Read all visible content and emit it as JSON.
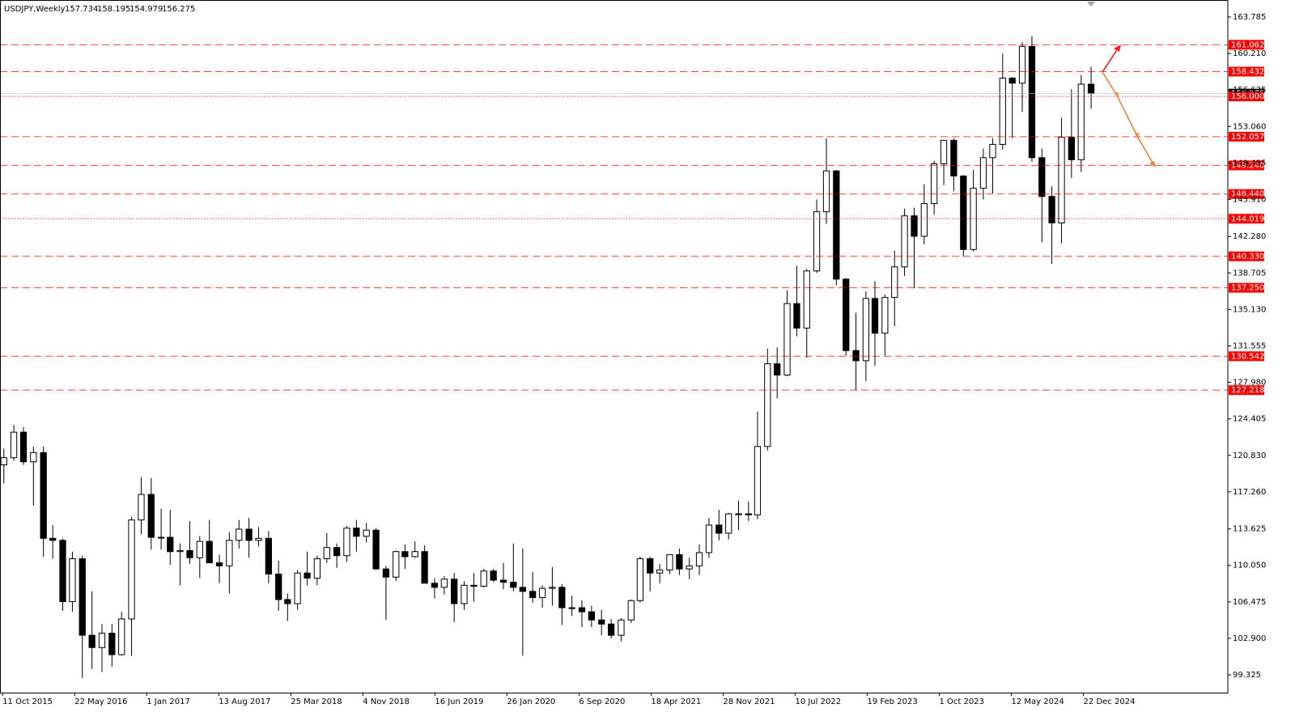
{
  "chart_data": {
    "type": "candlestick",
    "header": {
      "symbol": "USDJPY,Weekly",
      "quote": [
        157.734,
        158.195,
        154.979,
        156.275
      ]
    },
    "ylim": [
      97.58,
      165.29
    ],
    "yticks": [
      163.785,
      {
        "value": 160.21,
        "label": "160.210"
      },
      156.635,
      {
        "value": 153.06,
        "label": "153.060"
      },
      149.485,
      {
        "value": 145.91,
        "label": "145.910"
      },
      {
        "value": 142.28,
        "label": "142.280"
      },
      138.705,
      {
        "value": 135.13,
        "label": "135.130"
      },
      131.555,
      {
        "value": 127.98,
        "label": "127.980"
      },
      124.405,
      {
        "value": 120.83,
        "label": "120.830"
      },
      {
        "value": 117.26,
        "label": "117.260"
      },
      113.625,
      {
        "value": 110.05,
        "label": "110.050"
      },
      106.475,
      {
        "value": 102.9,
        "label": "102.900"
      },
      99.325
    ],
    "xlim": [
      "3 Oct 2015",
      "16 Mar 2026"
    ],
    "xticks": [
      "11 Oct 2015",
      "22 May 2016",
      "1 Jan 2017",
      "13 Aug 2017",
      "25 Mar 2018",
      "4 Nov 2018",
      "16 Jun 2019",
      "26 Jan 2020",
      "6 Sep 2020",
      "18 Apr 2021",
      "28 Nov 2021",
      "10 Jul 2022",
      "19 Feb 2023",
      "1 Oct 2023",
      "12 May 2024",
      "22 Dec 2024"
    ],
    "dashed_levels": [
      161.062,
      158.432,
      152.057,
      {
        "value": 149.24,
        "label": "149.240"
      },
      {
        "value": 146.44,
        "label": "146.440"
      },
      {
        "value": 140.33,
        "label": "140.330"
      },
      {
        "value": 137.25,
        "label": "137.250"
      },
      130.542,
      127.218
    ],
    "dotted_levels": [
      {
        "value": 156,
        "label": "156.000"
      },
      144.019
    ],
    "level_color": "#ff0000",
    "x": [
      "2015-10",
      "2015-11",
      "2015-12",
      "2016-01",
      "2016-02",
      "2016-03",
      "2016-04",
      "2016-05",
      "2016-06",
      "2016-07",
      "2016-08",
      "2016-09",
      "2016-10",
      "2016-11",
      "2016-12",
      "2017-01",
      "2017-02",
      "2017-03",
      "2017-04",
      "2017-05",
      "2017-06",
      "2017-07",
      "2017-08",
      "2017-09",
      "2017-10",
      "2017-11",
      "2017-12",
      "2018-01",
      "2018-02",
      "2018-03",
      "2018-04",
      "2018-05",
      "2018-06",
      "2018-07",
      "2018-08",
      "2018-09",
      "2018-10",
      "2018-11",
      "2018-12",
      "2019-01",
      "2019-02",
      "2019-03",
      "2019-04",
      "2019-05",
      "2019-06",
      "2019-07",
      "2019-08",
      "2019-09",
      "2019-10",
      "2019-11",
      "2019-12",
      "2020-01",
      "2020-02",
      "2020-03",
      "2020-04",
      "2020-05",
      "2020-06",
      "2020-07",
      "2020-08",
      "2020-09",
      "2020-10",
      "2020-11",
      "2020-12",
      "2021-01",
      "2021-02",
      "2021-03",
      "2021-04",
      "2021-05",
      "2021-06",
      "2021-07",
      "2021-08",
      "2021-09",
      "2021-10",
      "2021-11",
      "2021-12",
      "2022-01",
      "2022-02",
      "2022-03",
      "2022-04",
      "2022-05",
      "2022-06",
      "2022-07",
      "2022-08",
      "2022-09",
      "2022-10",
      "2022-11",
      "2022-12",
      "2023-01",
      "2023-02",
      "2023-03",
      "2023-04",
      "2023-05",
      "2023-06",
      "2023-07",
      "2023-08",
      "2023-09",
      "2023-10",
      "2023-11",
      "2023-12",
      "2024-01",
      "2024-02",
      "2024-03",
      "2024-04",
      "2024-05",
      "2024-06",
      "2024-07",
      "2024-08",
      "2024-09",
      "2024-10",
      "2024-11",
      "2024-12",
      "2025-01"
    ],
    "ohlc": [
      [
        119.9,
        121.5,
        118.1,
        120.6
      ],
      [
        120.6,
        123.8,
        120.3,
        123.1
      ],
      [
        123.1,
        123.6,
        119.9,
        120.2
      ],
      [
        120.2,
        121.7,
        115.9,
        121.1
      ],
      [
        121.1,
        121.7,
        110.9,
        112.7
      ],
      [
        112.7,
        114.0,
        110.7,
        112.5
      ],
      [
        112.5,
        112.7,
        105.6,
        106.5
      ],
      [
        106.5,
        111.4,
        105.5,
        110.7
      ],
      [
        110.7,
        111.0,
        99.0,
        103.2
      ],
      [
        103.2,
        107.5,
        99.9,
        102.0
      ],
      [
        102.0,
        104.3,
        99.6,
        103.4
      ],
      [
        103.4,
        104.3,
        100.1,
        101.3
      ],
      [
        101.3,
        105.5,
        101.2,
        104.8
      ],
      [
        104.8,
        114.8,
        101.2,
        114.5
      ],
      [
        114.5,
        118.7,
        113.1,
        117.0
      ],
      [
        117.0,
        118.6,
        111.6,
        112.8
      ],
      [
        112.8,
        115.6,
        111.6,
        112.8
      ],
      [
        112.8,
        115.5,
        110.1,
        111.4
      ],
      [
        111.4,
        112.2,
        108.1,
        111.5
      ],
      [
        111.5,
        114.4,
        110.2,
        110.8
      ],
      [
        110.8,
        112.9,
        108.8,
        112.4
      ],
      [
        112.4,
        114.5,
        110.6,
        110.3
      ],
      [
        110.3,
        111.1,
        108.3,
        110.0
      ],
      [
        110.0,
        113.3,
        107.3,
        112.5
      ],
      [
        112.5,
        114.5,
        111.7,
        113.6
      ],
      [
        113.6,
        114.7,
        110.8,
        112.5
      ],
      [
        112.5,
        113.8,
        111.9,
        112.7
      ],
      [
        112.7,
        113.4,
        108.3,
        109.2
      ],
      [
        109.2,
        110.5,
        105.6,
        106.7
      ],
      [
        106.7,
        107.3,
        104.6,
        106.3
      ],
      [
        106.3,
        109.6,
        105.7,
        109.3
      ],
      [
        109.3,
        111.4,
        108.1,
        108.8
      ],
      [
        108.8,
        111.0,
        108.1,
        110.7
      ],
      [
        110.7,
        113.2,
        110.3,
        111.8
      ],
      [
        111.8,
        112.2,
        109.8,
        111.0
      ],
      [
        111.0,
        113.9,
        110.4,
        113.7
      ],
      [
        113.7,
        114.5,
        111.4,
        112.9
      ],
      [
        112.9,
        114.2,
        112.3,
        113.5
      ],
      [
        113.5,
        113.7,
        109.6,
        109.7
      ],
      [
        109.7,
        110.0,
        104.7,
        108.9
      ],
      [
        108.9,
        111.5,
        108.5,
        111.4
      ],
      [
        111.4,
        112.1,
        109.7,
        110.9
      ],
      [
        110.9,
        112.4,
        110.8,
        111.4
      ],
      [
        111.4,
        112.0,
        108.3,
        108.3
      ],
      [
        108.3,
        108.8,
        106.8,
        107.9
      ],
      [
        107.9,
        109.0,
        107.2,
        108.7
      ],
      [
        108.7,
        109.3,
        104.5,
        106.3
      ],
      [
        106.3,
        108.5,
        105.7,
        108.1
      ],
      [
        108.1,
        109.3,
        106.5,
        108.0
      ],
      [
        108.0,
        109.7,
        107.9,
        109.5
      ],
      [
        109.5,
        109.7,
        108.4,
        108.6
      ],
      [
        108.6,
        110.3,
        107.7,
        108.4
      ],
      [
        108.4,
        112.2,
        107.5,
        107.9
      ],
      [
        107.9,
        111.7,
        101.2,
        107.5
      ],
      [
        107.5,
        109.4,
        106.4,
        106.9
      ],
      [
        106.9,
        108.1,
        105.9,
        107.8
      ],
      [
        107.8,
        109.9,
        106.1,
        107.9
      ],
      [
        107.9,
        108.2,
        104.2,
        105.9
      ],
      [
        105.9,
        107.1,
        105.1,
        105.9
      ],
      [
        105.9,
        106.6,
        104.0,
        105.5
      ],
      [
        105.5,
        106.1,
        104.0,
        104.7
      ],
      [
        104.7,
        105.7,
        103.2,
        104.3
      ],
      [
        104.3,
        104.8,
        102.9,
        103.2
      ],
      [
        103.2,
        104.9,
        102.6,
        104.7
      ],
      [
        104.7,
        106.7,
        104.4,
        106.6
      ],
      [
        106.6,
        110.9,
        106.4,
        110.7
      ],
      [
        110.7,
        110.9,
        107.5,
        109.3
      ],
      [
        109.3,
        110.2,
        108.3,
        109.6
      ],
      [
        109.6,
        111.1,
        109.2,
        111.1
      ],
      [
        111.1,
        111.7,
        109.1,
        109.7
      ],
      [
        109.7,
        110.8,
        108.7,
        110.0
      ],
      [
        110.0,
        112.1,
        109.1,
        111.3
      ],
      [
        111.3,
        114.7,
        110.8,
        114.0
      ],
      [
        114.0,
        115.5,
        112.5,
        113.2
      ],
      [
        113.2,
        115.2,
        112.6,
        115.1
      ],
      [
        115.1,
        116.4,
        113.5,
        115.1
      ],
      [
        115.1,
        116.3,
        114.4,
        115.0
      ],
      [
        115.0,
        125.1,
        114.6,
        121.7
      ],
      [
        121.7,
        131.3,
        121.3,
        129.8
      ],
      [
        129.8,
        131.4,
        126.4,
        128.7
      ],
      [
        128.7,
        137.0,
        128.6,
        135.7
      ],
      [
        135.7,
        139.4,
        132.5,
        133.3
      ],
      [
        133.3,
        139.1,
        130.4,
        138.9
      ],
      [
        138.9,
        145.9,
        138.7,
        144.7
      ],
      [
        144.7,
        151.9,
        143.5,
        148.7
      ],
      [
        148.7,
        148.8,
        137.5,
        138.1
      ],
      [
        138.1,
        138.2,
        130.6,
        131.1
      ],
      [
        131.1,
        134.8,
        127.2,
        130.1
      ],
      [
        130.1,
        136.9,
        128.1,
        136.2
      ],
      [
        136.2,
        137.9,
        129.6,
        132.8
      ],
      [
        132.8,
        136.6,
        130.6,
        136.3
      ],
      [
        136.3,
        140.9,
        133.5,
        139.3
      ],
      [
        139.3,
        145.0,
        138.4,
        144.3
      ],
      [
        144.3,
        145.1,
        137.2,
        142.3
      ],
      [
        142.3,
        147.4,
        141.5,
        145.5
      ],
      [
        145.5,
        149.7,
        144.4,
        149.4
      ],
      [
        149.4,
        151.7,
        147.3,
        151.7
      ],
      [
        151.7,
        151.9,
        146.7,
        148.2
      ],
      [
        148.2,
        148.3,
        140.3,
        141.0
      ],
      [
        141.0,
        148.8,
        140.8,
        147.0
      ],
      [
        147.0,
        150.9,
        145.9,
        150.0
      ],
      [
        150.0,
        151.9,
        146.5,
        151.3
      ],
      [
        151.3,
        160.2,
        150.8,
        157.8
      ],
      [
        157.8,
        157.9,
        151.9,
        157.3
      ],
      [
        157.3,
        161.3,
        154.5,
        160.9
      ],
      [
        160.9,
        161.9,
        149.6,
        150.0
      ],
      [
        150.0,
        150.9,
        141.7,
        146.2
      ],
      [
        146.2,
        147.2,
        139.6,
        143.6
      ],
      [
        143.6,
        153.9,
        141.6,
        152.0
      ],
      [
        152.0,
        156.7,
        148.0,
        149.8
      ],
      [
        149.8,
        158.1,
        148.6,
        157.2
      ],
      [
        157.2,
        158.9,
        154.8,
        156.3
      ]
    ]
  }
}
